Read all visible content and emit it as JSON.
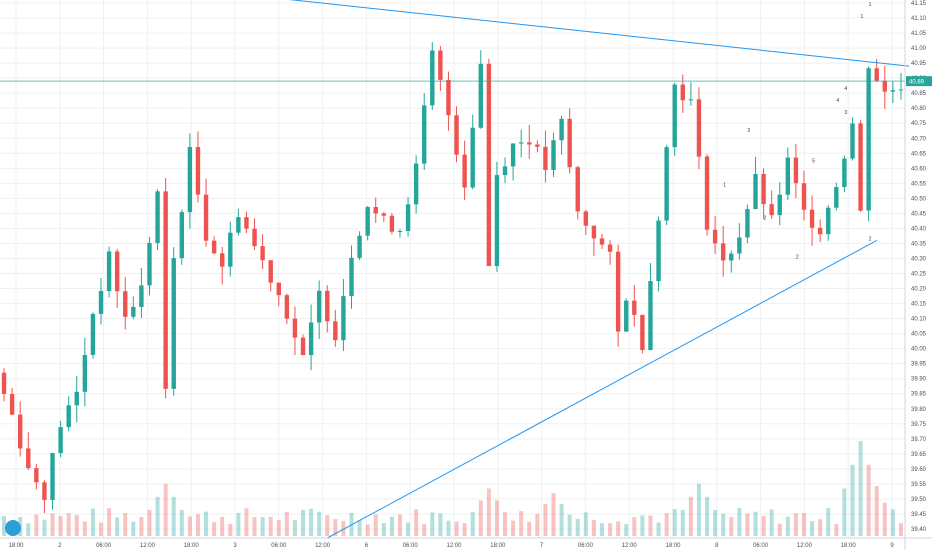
{
  "chart_data": {
    "type": "candlestick",
    "symbol": "",
    "current_price": "40.89",
    "y_ticks": [
      "41.15",
      "41.10",
      "41.05",
      "41.00",
      "40.95",
      "40.90",
      "40.85",
      "40.80",
      "40.75",
      "40.70",
      "40.65",
      "40.60",
      "40.55",
      "40.50",
      "40.45",
      "40.40",
      "40.35",
      "40.30",
      "40.25",
      "40.20",
      "40.15",
      "40.10",
      "40.05",
      "40.00",
      "39.95",
      "39.90",
      "39.85",
      "39.80",
      "39.75",
      "39.70",
      "39.65",
      "39.60",
      "39.55",
      "39.50",
      "39.45",
      "39.40"
    ],
    "x_ticks": [
      "18:00",
      "2",
      "06:00",
      "12:00",
      "18:00",
      "3",
      "06:00",
      "12:00",
      "6",
      "06:00",
      "12:00",
      "18:00",
      "7",
      "06:00",
      "12:00",
      "18:00",
      "8",
      "06:00",
      "12:00",
      "18:00",
      "9"
    ],
    "ylim": [
      39.37,
      41.16
    ],
    "price_series": [
      {
        "x": 0,
        "y": 39.92
      },
      {
        "x": 2,
        "y": 39.78
      },
      {
        "x": 4,
        "y": 39.6
      },
      {
        "x": 6,
        "y": 39.52
      },
      {
        "x": 8,
        "y": 39.75
      },
      {
        "x": 10,
        "y": 39.85
      },
      {
        "x": 12,
        "y": 40.12
      },
      {
        "x": 14,
        "y": 40.3
      },
      {
        "x": 16,
        "y": 40.1
      },
      {
        "x": 18,
        "y": 40.2
      },
      {
        "x": 20,
        "y": 40.52
      },
      {
        "x": 21,
        "y": 39.85
      },
      {
        "x": 22,
        "y": 40.3
      },
      {
        "x": 24,
        "y": 40.65
      },
      {
        "x": 26,
        "y": 40.38
      },
      {
        "x": 28,
        "y": 40.28
      },
      {
        "x": 30,
        "y": 40.46
      },
      {
        "x": 32,
        "y": 40.34
      },
      {
        "x": 34,
        "y": 40.24
      },
      {
        "x": 36,
        "y": 40.12
      },
      {
        "x": 38,
        "y": 39.96
      },
      {
        "x": 40,
        "y": 40.18
      },
      {
        "x": 42,
        "y": 40.05
      },
      {
        "x": 44,
        "y": 40.32
      },
      {
        "x": 46,
        "y": 40.48
      },
      {
        "x": 48,
        "y": 40.42
      },
      {
        "x": 50,
        "y": 40.4
      },
      {
        "x": 52,
        "y": 40.6
      },
      {
        "x": 54,
        "y": 40.98
      },
      {
        "x": 56,
        "y": 40.78
      },
      {
        "x": 58,
        "y": 40.55
      },
      {
        "x": 60,
        "y": 40.95
      },
      {
        "x": 61,
        "y": 40.28
      },
      {
        "x": 62,
        "y": 40.58
      },
      {
        "x": 64,
        "y": 40.68
      },
      {
        "x": 66,
        "y": 40.7
      },
      {
        "x": 68,
        "y": 40.6
      },
      {
        "x": 70,
        "y": 40.75
      },
      {
        "x": 72,
        "y": 40.45
      },
      {
        "x": 74,
        "y": 40.38
      },
      {
        "x": 76,
        "y": 40.3
      },
      {
        "x": 77,
        "y": 40.05
      },
      {
        "x": 78,
        "y": 40.18
      },
      {
        "x": 80,
        "y": 40.02
      },
      {
        "x": 82,
        "y": 40.45
      },
      {
        "x": 84,
        "y": 40.88
      },
      {
        "x": 86,
        "y": 40.82
      },
      {
        "x": 88,
        "y": 40.42
      },
      {
        "x": 90,
        "y": 40.28
      },
      {
        "x": 92,
        "y": 40.38
      },
      {
        "x": 94,
        "y": 40.56
      },
      {
        "x": 96,
        "y": 40.42
      },
      {
        "x": 98,
        "y": 40.62
      },
      {
        "x": 100,
        "y": 40.45
      },
      {
        "x": 102,
        "y": 40.4
      },
      {
        "x": 104,
        "y": 40.55
      },
      {
        "x": 106,
        "y": 40.75
      },
      {
        "x": 107,
        "y": 40.45
      },
      {
        "x": 108,
        "y": 40.95
      },
      {
        "x": 110,
        "y": 40.85
      },
      {
        "x": 112,
        "y": 40.88
      }
    ],
    "volume_peaks": [
      {
        "x": 20,
        "v": 0.55
      },
      {
        "x": 60,
        "v": 0.5
      },
      {
        "x": 68,
        "v": 0.45
      },
      {
        "x": 86,
        "v": 0.55
      },
      {
        "x": 106,
        "v": 1.0
      },
      {
        "x": 107,
        "v": 0.7
      }
    ],
    "upper_trendline": [
      {
        "x": 22,
        "y": 41.2
      },
      {
        "x": 112,
        "y": 40.94
      }
    ],
    "lower_trendline": [
      {
        "x": 40,
        "y": 39.37
      },
      {
        "x": 108,
        "y": 40.36
      }
    ],
    "current_price_line_y": 40.89,
    "wave_labels": [
      "1",
      "2",
      "3",
      "4",
      "5",
      "1",
      "2",
      "3",
      "4",
      "1",
      "2"
    ],
    "colors": {
      "up": "#26a69a",
      "down": "#ef5350",
      "trendline": "#2196f3",
      "price_tag": "#26a69a",
      "grid": "#eef0f3"
    }
  }
}
